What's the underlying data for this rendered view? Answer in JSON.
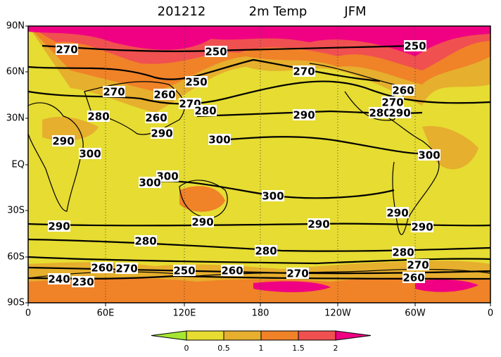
{
  "title": {
    "date": "201212",
    "variable": "2m Temp",
    "season": "JFM"
  },
  "lat_labels": [
    "90N",
    "60N",
    "30N",
    "EQ",
    "30S",
    "60S",
    "90S"
  ],
  "lon_labels": [
    "0",
    "60E",
    "120E",
    "180",
    "120W",
    "60W",
    "0"
  ],
  "contour_labels": [
    270,
    250,
    250,
    270,
    250,
    270,
    260,
    260,
    270,
    280,
    270,
    280,
    260,
    290,
    280,
    290,
    290,
    290,
    300,
    300,
    300,
    300,
    300,
    300,
    290,
    290,
    290,
    290,
    290,
    280,
    280,
    280,
    270,
    260,
    270,
    250,
    260,
    270,
    260,
    240,
    230
  ],
  "colorbar": {
    "ticks": [
      0,
      0.5,
      1,
      1.5,
      2
    ],
    "colors": [
      "#a6e632",
      "#e6dc32",
      "#e6af2d",
      "#f08228",
      "#f05050",
      "#f00082"
    ]
  }
}
